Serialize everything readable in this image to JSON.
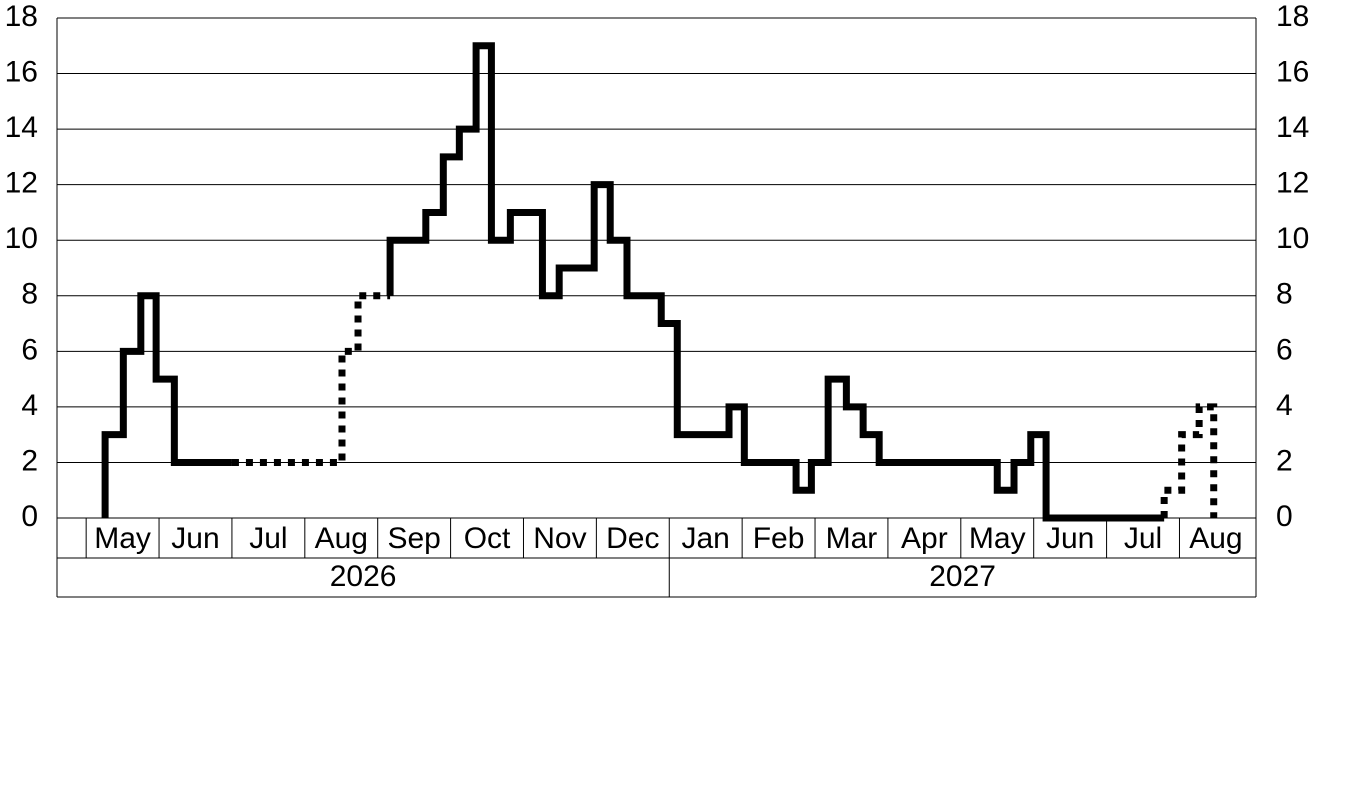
{
  "chart_data": {
    "type": "step",
    "x": [
      0.26,
      0.26,
      0.51,
      0.75,
      0.96,
      1.21,
      2.0,
      3.51,
      3.73,
      4.17,
      4.17,
      4.66,
      4.9,
      5.12,
      5.35,
      5.56,
      5.82,
      6.26,
      6.49,
      6.97,
      7.19,
      7.42,
      7.89,
      8.11,
      8.82,
      9.03,
      9.74,
      9.95,
      10.18,
      10.43,
      10.66,
      10.88,
      12.5,
      12.73,
      12.96,
      13.17,
      14.79,
      14.79,
      15.03,
      15.27,
      15.47
    ],
    "series": [
      {
        "color": "#000000",
        "dash": false,
        "values": [
          0,
          3,
          6,
          8,
          5,
          2,
          2,
          null,
          null,
          8,
          10,
          11,
          13,
          14,
          17,
          10,
          11,
          8,
          9,
          12,
          10,
          8,
          7,
          3,
          4,
          2,
          1,
          2,
          5,
          4,
          3,
          2,
          1,
          2,
          3,
          0,
          0,
          null,
          null,
          null,
          null
        ]
      },
      {
        "color": "#000000",
        "dash": true,
        "values": [
          null,
          null,
          null,
          null,
          null,
          null,
          2,
          6,
          8,
          8,
          null,
          null,
          null,
          null,
          null,
          null,
          null,
          null,
          null,
          null,
          null,
          null,
          null,
          null,
          null,
          null,
          null,
          null,
          null,
          null,
          null,
          null,
          null,
          null,
          null,
          null,
          0,
          1,
          3,
          4,
          0
        ]
      }
    ],
    "xlim": [
      -0.4,
      16.05
    ],
    "xticks": [
      {
        "value": 0.5,
        "label": "May"
      },
      {
        "value": 1.5,
        "label": "Jun"
      },
      {
        "value": 2.5,
        "label": "Jul"
      },
      {
        "value": 3.5,
        "label": "Aug"
      },
      {
        "value": 4.5,
        "label": "Sep"
      },
      {
        "value": 5.5,
        "label": "Oct"
      },
      {
        "value": 6.5,
        "label": "Nov"
      },
      {
        "value": 7.5,
        "label": "Dec"
      },
      {
        "value": 8.5,
        "label": "Jan"
      },
      {
        "value": 9.5,
        "label": "Feb"
      },
      {
        "value": 10.5,
        "label": "Mar"
      },
      {
        "value": 11.5,
        "label": "Apr"
      },
      {
        "value": 12.5,
        "label": "May"
      },
      {
        "value": 13.5,
        "label": "Jun"
      },
      {
        "value": 14.5,
        "label": "Jul"
      },
      {
        "value": 15.5,
        "label": "Aug"
      }
    ],
    "year_labels": [
      "2026",
      "2027"
    ],
    "year_break": 8,
    "ylim": [
      0,
      18
    ],
    "yticks": [
      0,
      2,
      4,
      6,
      8,
      10,
      12,
      14,
      16,
      18
    ],
    "y2lim": [
      0,
      18
    ],
    "y2ticks": [
      0,
      2,
      4,
      6,
      8,
      10,
      12,
      14,
      16,
      18
    ],
    "grid": true
  }
}
